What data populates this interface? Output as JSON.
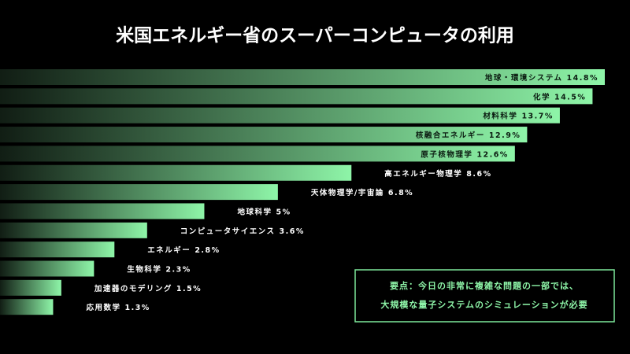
{
  "chart_data": {
    "type": "bar",
    "orientation": "horizontal",
    "title": "米国エネルギー省のスーパーコンピュータの利用",
    "categories": [
      "地球・環境システム",
      "化学",
      "材料科学",
      "核融合エネルギー",
      "原子核物理学",
      "高エネルギー物理学",
      "天体物理学/宇宙論",
      "地球科学",
      "コンピュータサイエンス",
      "エネルギー",
      "生物科学",
      "加速器のモデリング",
      "応用数学"
    ],
    "values": [
      14.8,
      14.5,
      13.7,
      12.9,
      12.6,
      8.6,
      6.8,
      5,
      3.6,
      2.8,
      2.3,
      1.5,
      1.3
    ],
    "value_labels": [
      "14.8%",
      "14.5%",
      "13.7%",
      "12.9%",
      "12.6%",
      "8.6%",
      "6.8%",
      "5%",
      "3.6%",
      "2.8%",
      "2.3%",
      "1.5%",
      "1.3%"
    ],
    "color": "#8ef5a8",
    "note": [
      "要点：今日の非常に複雑な問題の一部では、",
      "大規模な量子システムのシミュレーションが必要"
    ]
  }
}
